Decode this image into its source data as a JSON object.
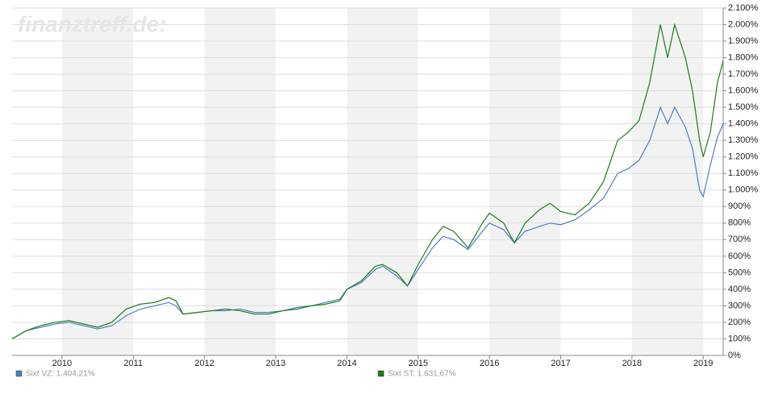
{
  "chart_data": {
    "type": "line",
    "watermark": "finanztreff.de:",
    "x": [
      2009.3,
      2009.5,
      2009.7,
      2009.9,
      2010.1,
      2010.3,
      2010.5,
      2010.7,
      2010.9,
      2011.1,
      2011.3,
      2011.5,
      2011.6,
      2011.7,
      2011.9,
      2012.1,
      2012.3,
      2012.5,
      2012.7,
      2012.9,
      2013.1,
      2013.3,
      2013.5,
      2013.7,
      2013.9,
      2014.0,
      2014.2,
      2014.4,
      2014.5,
      2014.7,
      2014.85,
      2015.0,
      2015.2,
      2015.35,
      2015.5,
      2015.7,
      2015.9,
      2016.0,
      2016.2,
      2016.35,
      2016.5,
      2016.7,
      2016.85,
      2017.0,
      2017.2,
      2017.4,
      2017.6,
      2017.8,
      2017.95,
      2018.1,
      2018.25,
      2018.4,
      2018.5,
      2018.6,
      2018.75,
      2018.85,
      2018.95,
      2019.0,
      2019.1,
      2019.2,
      2019.28
    ],
    "series": [
      {
        "name": "Sixt VZ: 1.404,21%",
        "color": "#4f7fbf",
        "values": [
          100,
          150,
          170,
          190,
          200,
          180,
          160,
          180,
          240,
          280,
          300,
          320,
          300,
          250,
          260,
          270,
          270,
          280,
          260,
          260,
          270,
          290,
          300,
          320,
          340,
          400,
          440,
          520,
          540,
          480,
          420,
          520,
          650,
          720,
          700,
          640,
          750,
          800,
          760,
          680,
          750,
          780,
          800,
          790,
          820,
          880,
          950,
          1100,
          1130,
          1180,
          1300,
          1500,
          1400,
          1500,
          1380,
          1250,
          1000,
          960,
          1150,
          1320,
          1400
        ]
      },
      {
        "name": "Sixt ST: 1.631,67%",
        "color": "#1a7f1a",
        "values": [
          100,
          150,
          180,
          200,
          210,
          190,
          170,
          200,
          280,
          310,
          320,
          350,
          330,
          250,
          260,
          270,
          280,
          270,
          250,
          250,
          270,
          280,
          300,
          310,
          330,
          400,
          450,
          540,
          550,
          500,
          420,
          550,
          700,
          780,
          750,
          650,
          800,
          860,
          800,
          680,
          800,
          880,
          920,
          870,
          850,
          920,
          1050,
          1300,
          1350,
          1420,
          1650,
          2000,
          1800,
          2000,
          1800,
          1600,
          1300,
          1200,
          1350,
          1650,
          1780
        ]
      }
    ],
    "xlim": [
      2009.3,
      2019.28
    ],
    "xticks": [
      2010,
      2011,
      2012,
      2013,
      2014,
      2015,
      2016,
      2017,
      2018,
      2019
    ],
    "ylim": [
      0,
      2100
    ],
    "yticks": [
      {
        "value": 0,
        "label": "0%"
      },
      {
        "value": 100,
        "label": "100%"
      },
      {
        "value": 200,
        "label": "200%"
      },
      {
        "value": 300,
        "label": "300%"
      },
      {
        "value": 400,
        "label": "400%"
      },
      {
        "value": 500,
        "label": "500%"
      },
      {
        "value": 600,
        "label": "600%"
      },
      {
        "value": 700,
        "label": "700%"
      },
      {
        "value": 800,
        "label": "800%"
      },
      {
        "value": 900,
        "label": "900%"
      },
      {
        "value": 1000,
        "label": "1.000%"
      },
      {
        "value": 1100,
        "label": "1.100%"
      },
      {
        "value": 1200,
        "label": "1.200%"
      },
      {
        "value": 1300,
        "label": "1.300%"
      },
      {
        "value": 1400,
        "label": "1.400%"
      },
      {
        "value": 1500,
        "label": "1.500%"
      },
      {
        "value": 1600,
        "label": "1.600%"
      },
      {
        "value": 1700,
        "label": "1.700%"
      },
      {
        "value": 1800,
        "label": "1.800%"
      },
      {
        "value": 1900,
        "label": "1.900%"
      },
      {
        "value": 2000,
        "label": "2.000%"
      },
      {
        "value": 2100,
        "label": "2.100%"
      }
    ],
    "grid": true
  }
}
